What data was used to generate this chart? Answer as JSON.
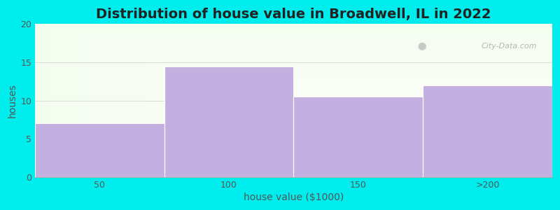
{
  "title": "Distribution of house value in Broadwell, IL in 2022",
  "categories": [
    "50",
    "100",
    "150",
    ">200"
  ],
  "values": [
    7,
    14.5,
    10.5,
    12
  ],
  "bar_color": "#C4B0E0",
  "xlabel": "house value ($1000)",
  "ylabel": "houses",
  "ylim": [
    0,
    20
  ],
  "yticks": [
    0,
    5,
    10,
    15,
    20
  ],
  "bg_outer": "#00EDED",
  "bg_grad_topleft": "#E8F5E0",
  "bg_grad_right": "#F8FAF8",
  "title_fontsize": 14,
  "axis_label_fontsize": 10,
  "tick_fontsize": 9,
  "watermark": "City-Data.com",
  "grid_color": "#DDDDDD",
  "figsize": [
    8.0,
    3.0
  ],
  "dpi": 100
}
